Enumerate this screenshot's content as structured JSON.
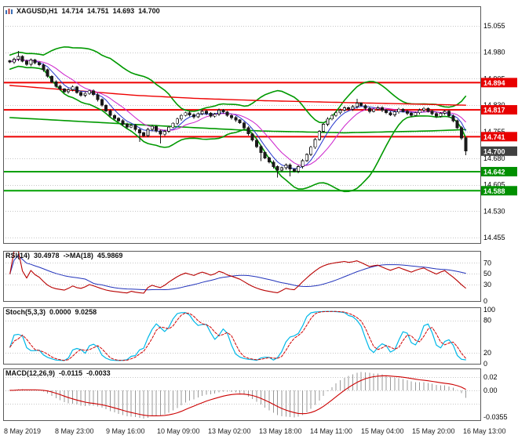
{
  "header": {
    "symbol_tf": "XAGUSD,H1",
    "open": "14.714",
    "high": "14.751",
    "low": "14.693",
    "close": "14.700"
  },
  "colors": {
    "grid": "#c6c6c6",
    "border": "#5a5a5a",
    "candle": "#1a1a1a",
    "bull_fill": "#ffffff",
    "bear_fill": "#1a1a1a",
    "bb": "#009900",
    "ma_red": "#ee0000",
    "ma_blue": "#2233cc",
    "ma_magenta": "#cc22cc",
    "level_red": "#ee0000",
    "level_green": "#00a000",
    "tag_red": "#e80000",
    "tag_green": "#009000",
    "tag_current": "#404040",
    "rsi_line": "#b80000",
    "rsi_ma": "#2233bb",
    "stoch_k": "#00b8e8",
    "stoch_d": "#d00000",
    "macd_hist": "#999999",
    "macd_signal": "#cc0000",
    "axis_text": "#000000",
    "time_text": "#222222"
  },
  "chart_data": [
    {
      "type": "candlestick",
      "symbol": "XAGUSD",
      "timeframe": "H1",
      "title": "XAGUSD,H1 14.714 14.751 14.693 14.700",
      "ohlc_display": {
        "open": 14.714,
        "high": 14.751,
        "low": 14.693,
        "close": 14.7
      },
      "y_domain": [
        14.44,
        15.11
      ],
      "y_ticks": [
        [
          15.055,
          "15.055"
        ],
        [
          14.98,
          "14.980"
        ],
        [
          14.905,
          "14.905"
        ],
        [
          14.83,
          "14.830"
        ],
        [
          14.755,
          "14.755"
        ],
        [
          14.68,
          "14.680"
        ],
        [
          14.605,
          "14.605"
        ],
        [
          14.53,
          "14.530"
        ],
        [
          14.455,
          "14.455"
        ]
      ],
      "levels_red": [
        [
          14.894,
          "14.894"
        ],
        [
          14.817,
          "14.817"
        ],
        [
          14.741,
          "14.741"
        ]
      ],
      "levels_green": [
        [
          14.642,
          "14.642"
        ],
        [
          14.588,
          "14.588"
        ]
      ],
      "current_price": [
        14.7,
        "14.700"
      ],
      "closes": [
        14.952,
        14.96,
        14.968,
        14.955,
        14.946,
        14.958,
        14.95,
        14.944,
        14.93,
        14.912,
        14.896,
        14.884,
        14.876,
        14.868,
        14.874,
        14.882,
        14.866,
        14.858,
        14.863,
        14.871,
        14.86,
        14.846,
        14.83,
        14.814,
        14.801,
        14.793,
        14.786,
        14.776,
        14.768,
        14.773,
        14.761,
        14.752,
        14.744,
        14.762,
        14.77,
        14.757,
        14.748,
        14.756,
        14.768,
        14.779,
        14.791,
        14.801,
        14.809,
        14.803,
        14.797,
        14.806,
        14.813,
        14.807,
        14.799,
        14.805,
        14.816,
        14.811,
        14.801,
        14.795,
        14.788,
        14.78,
        14.766,
        14.749,
        14.731,
        14.713,
        14.696,
        14.681,
        14.669,
        14.656,
        14.646,
        14.653,
        14.661,
        14.649,
        14.643,
        14.656,
        14.673,
        14.691,
        14.711,
        14.733,
        14.756,
        14.776,
        14.791,
        14.801,
        14.809,
        14.816,
        14.823,
        14.819,
        14.826,
        14.836,
        14.829,
        14.821,
        14.813,
        14.819,
        14.823,
        14.816,
        14.809,
        14.803,
        14.811,
        14.819,
        14.813,
        14.807,
        14.801,
        14.809,
        14.816,
        14.821,
        14.813,
        14.806,
        14.799,
        14.807,
        14.813,
        14.8,
        14.786,
        14.766,
        14.737,
        14.7
      ],
      "wick_overrides": [
        {
          "i": 2,
          "high": 14.984
        },
        {
          "i": 31,
          "low": 14.726
        },
        {
          "i": 36,
          "low": 14.722
        },
        {
          "i": 60,
          "low": 14.672
        },
        {
          "i": 64,
          "low": 14.625
        },
        {
          "i": 67,
          "low": 14.629
        },
        {
          "i": 83,
          "high": 14.848
        },
        {
          "i": 109,
          "low": 14.688
        }
      ],
      "ma_red_anchors": {
        "i": [
          0,
          15,
          30,
          45,
          60,
          75,
          90,
          109
        ],
        "v": [
          14.886,
          14.872,
          14.858,
          14.849,
          14.843,
          14.839,
          14.835,
          14.83
        ]
      },
      "ma_green_anchors": {
        "i": [
          0,
          20,
          40,
          60,
          80,
          100,
          109
        ],
        "v": [
          14.795,
          14.782,
          14.769,
          14.757,
          14.752,
          14.757,
          14.761
        ]
      }
    },
    {
      "type": "line",
      "name": "RSI",
      "label": "RSI(14)",
      "value": "30.4978",
      "ma_label": "->MA(18)",
      "ma_value": "45.9869",
      "params": {
        "period": 14,
        "ma_period": 18
      },
      "y_domain": [
        0,
        92
      ],
      "y_ticks": [
        [
          70,
          "70"
        ],
        [
          50,
          "50"
        ],
        [
          30,
          "30"
        ],
        [
          0,
          "0"
        ]
      ],
      "grid_levels": [
        70,
        50,
        30
      ]
    },
    {
      "type": "line",
      "name": "Stochastic",
      "label": "Stoch(5,3,3)",
      "value": "0.0000",
      "signal_value": "9.0258",
      "params": {
        "k": 5,
        "d": 3,
        "slowing": 3
      },
      "y_domain": [
        0,
        104
      ],
      "y_ticks": [
        [
          100,
          "100"
        ],
        [
          80,
          "80"
        ],
        [
          20,
          "20"
        ],
        [
          0,
          "0"
        ]
      ],
      "grid_levels": [
        80,
        20
      ]
    },
    {
      "type": "histogram+line",
      "name": "MACD",
      "label": "MACD(12,26,9)",
      "value": "-0.0115",
      "signal_value": "-0.0033",
      "params": {
        "fast": 12,
        "slow": 26,
        "signal": 9
      },
      "y_domain": [
        -0.045,
        0.033
      ],
      "y_ticks": [
        [
          0.02,
          "0.02"
        ],
        [
          0,
          "0.00"
        ]
      ],
      "min_label": "-0.0355",
      "grid_levels": [
        0.02,
        0,
        -0.02
      ]
    }
  ],
  "time_axis": {
    "labels": [
      "8 May 2019",
      "8 May 23:00",
      "9 May 16:00",
      "10 May 09:00",
      "13 May 02:00",
      "13 May 18:00",
      "14 May 11:00",
      "15 May 04:00",
      "15 May 20:00",
      "16 May 13:00"
    ]
  }
}
